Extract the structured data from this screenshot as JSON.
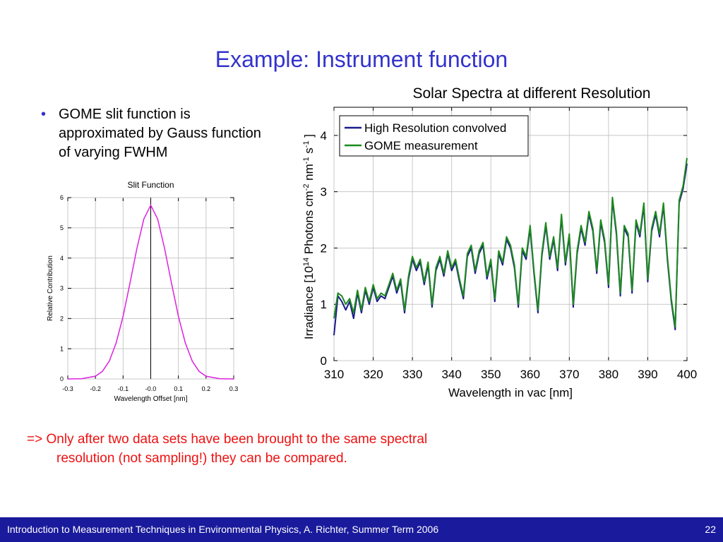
{
  "slide": {
    "title": "Example: Instrument function",
    "bullet": "GOME slit function is approximated by Gauss function of varying FWHM",
    "bullet_symbol": "•",
    "conclusion_line1": "=> Only after two data sets have been brought to the same spectral",
    "conclusion_line2": "resolution (not sampling!) they can be compared.",
    "footer_text": "Introduction to Measurement Techniques in Environmental Physics, A. Richter, Summer Term 2006",
    "page_number": "22"
  },
  "colors": {
    "title": "#3333cc",
    "conclusion": "#ee1111",
    "footer_bg": "#1a1a9c",
    "slit_curve": "#dd22dd",
    "high_res": "#1a1a8c",
    "gome": "#1e8a1e"
  },
  "chart_data": [
    {
      "type": "line",
      "title": "Slit Function",
      "xlabel": "Wavelength Offset [nm]",
      "ylabel": "Relative Contribution",
      "xlim": [
        -0.3,
        0.3
      ],
      "ylim": [
        0,
        6
      ],
      "x_ticks": [
        "-0.3",
        "-0.2",
        "-0.1",
        "-0.0",
        "0.1",
        "0.2",
        "0.3"
      ],
      "y_ticks": [
        "0",
        "1",
        "2",
        "3",
        "4",
        "5",
        "6"
      ],
      "grid": true,
      "series": [
        {
          "x": [
            -0.3,
            -0.25,
            -0.2,
            -0.175,
            -0.15,
            -0.125,
            -0.1,
            -0.075,
            -0.05,
            -0.025,
            0.0,
            0.025,
            0.05,
            0.075,
            0.1,
            0.125,
            0.15,
            0.175,
            0.2,
            0.25,
            0.3
          ],
          "values": [
            0.0,
            0.01,
            0.09,
            0.25,
            0.59,
            1.19,
            2.07,
            3.17,
            4.32,
            5.29,
            5.75,
            5.29,
            4.32,
            3.17,
            2.07,
            1.19,
            0.59,
            0.25,
            0.09,
            0.01,
            0.0
          ]
        }
      ]
    },
    {
      "type": "line",
      "title": "Solar Spectra at different Resolution",
      "xlabel": "Wavelength in vac [nm]",
      "ylabel_parts": [
        "Irradiance [10",
        "14",
        " Photons cm",
        "-2",
        " nm",
        "-1",
        " s",
        "-1",
        " ]"
      ],
      "xlim": [
        310,
        400
      ],
      "ylim": [
        0,
        4.5
      ],
      "x_ticks": [
        "310",
        "320",
        "330",
        "340",
        "350",
        "360",
        "370",
        "380",
        "390",
        "400"
      ],
      "y_ticks": [
        "0",
        "1",
        "2",
        "3",
        "4"
      ],
      "grid": true,
      "legend_position": "top-left",
      "x": [
        310,
        311,
        312,
        313,
        314,
        315,
        316,
        317,
        318,
        319,
        320,
        321,
        322,
        323,
        324,
        325,
        326,
        327,
        328,
        329,
        330,
        331,
        332,
        333,
        334,
        335,
        336,
        337,
        338,
        339,
        340,
        341,
        342,
        343,
        344,
        345,
        346,
        347,
        348,
        349,
        350,
        351,
        352,
        353,
        354,
        355,
        356,
        357,
        358,
        359,
        360,
        361,
        362,
        363,
        364,
        365,
        366,
        367,
        368,
        369,
        370,
        371,
        372,
        373,
        374,
        375,
        376,
        377,
        378,
        379,
        380,
        381,
        382,
        383,
        384,
        385,
        386,
        387,
        388,
        389,
        390,
        391,
        392,
        393,
        394,
        395,
        396,
        397,
        398,
        399,
        400
      ],
      "series": [
        {
          "name": "High Resolution convolved",
          "values": [
            0.45,
            1.15,
            1.05,
            0.9,
            1.05,
            0.75,
            1.2,
            0.85,
            1.25,
            1.0,
            1.3,
            1.05,
            1.15,
            1.1,
            1.3,
            1.5,
            1.2,
            1.4,
            0.85,
            1.45,
            1.8,
            1.6,
            1.75,
            1.35,
            1.7,
            0.95,
            1.6,
            1.8,
            1.5,
            1.9,
            1.6,
            1.75,
            1.4,
            1.1,
            1.85,
            2.0,
            1.55,
            1.9,
            2.05,
            1.45,
            1.75,
            1.05,
            1.9,
            1.7,
            2.15,
            2.0,
            1.65,
            0.95,
            1.95,
            1.8,
            2.35,
            1.55,
            0.85,
            1.85,
            2.4,
            1.8,
            2.15,
            1.6,
            2.55,
            1.7,
            2.2,
            0.95,
            1.9,
            2.35,
            2.05,
            2.6,
            2.3,
            1.55,
            2.45,
            2.1,
            1.3,
            2.85,
            2.25,
            1.15,
            2.35,
            2.2,
            1.2,
            2.45,
            2.2,
            2.75,
            1.4,
            2.3,
            2.6,
            2.2,
            2.75,
            1.8,
            1.05,
            0.55,
            2.8,
            3.05,
            3.5
          ]
        },
        {
          "name": "GOME measurement",
          "values": [
            0.75,
            1.2,
            1.15,
            1.0,
            1.1,
            0.85,
            1.25,
            0.9,
            1.3,
            1.05,
            1.35,
            1.1,
            1.2,
            1.15,
            1.35,
            1.55,
            1.25,
            1.45,
            0.9,
            1.5,
            1.85,
            1.65,
            1.8,
            1.4,
            1.75,
            1.0,
            1.65,
            1.85,
            1.55,
            1.95,
            1.65,
            1.8,
            1.45,
            1.15,
            1.9,
            2.05,
            1.6,
            1.95,
            2.1,
            1.5,
            1.8,
            1.1,
            1.95,
            1.75,
            2.2,
            2.05,
            1.7,
            1.0,
            2.0,
            1.85,
            2.4,
            1.6,
            0.9,
            1.9,
            2.45,
            1.85,
            2.2,
            1.65,
            2.6,
            1.75,
            2.25,
            1.0,
            1.95,
            2.4,
            2.1,
            2.65,
            2.35,
            1.6,
            2.5,
            2.15,
            1.35,
            2.9,
            2.3,
            1.2,
            2.4,
            2.25,
            1.25,
            2.5,
            2.25,
            2.8,
            1.45,
            2.35,
            2.65,
            2.25,
            2.8,
            1.85,
            1.1,
            0.6,
            2.85,
            3.1,
            3.6
          ]
        }
      ]
    }
  ]
}
